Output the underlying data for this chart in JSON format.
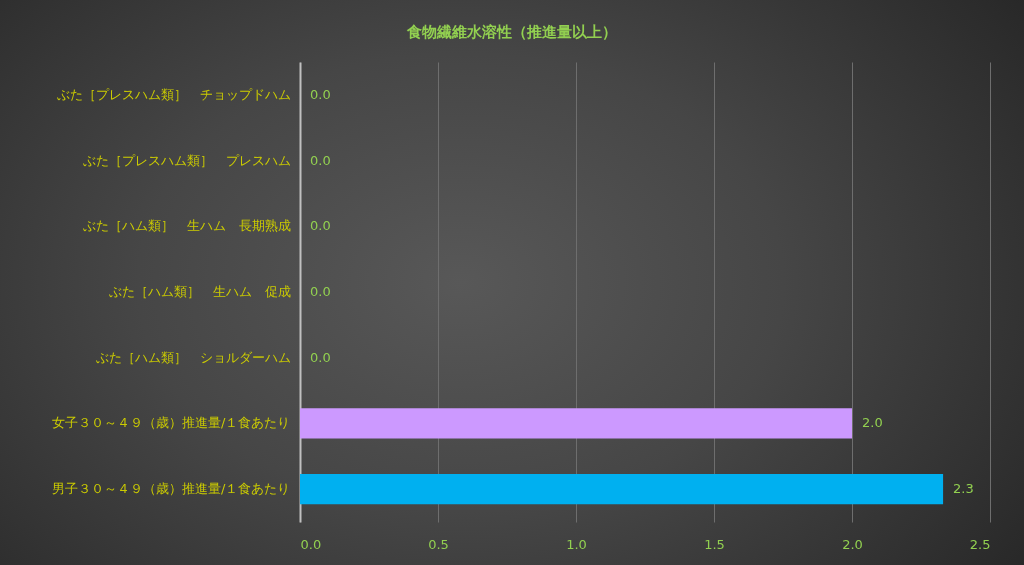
{
  "chart_data": {
    "type": "bar",
    "title": "食物繊維水溶性（推進量以上）",
    "orientation": "horizontal",
    "categories": [
      "ぶた［プレスハム類］　チョップドハム",
      "ぶた［プレスハム類］　プレスハム",
      "ぶた［ハム類］　生ハム　長期熟成",
      "ぶた［ハム類］　生ハム　促成",
      "ぶた［ハム類］　ショルダーハム",
      "女子３０～４９（歳）推進量/１食あたり",
      "男子３０～４９（歳）推進量/１食あたり"
    ],
    "values": [
      0,
      0,
      0,
      0,
      0,
      2.0,
      2.33
    ],
    "colors": [
      "#a5a5a5",
      "#a5a5a5",
      "#a5a5a5",
      "#a5a5a5",
      "#a5a5a5",
      "#cc99ff",
      "#00b0f0"
    ],
    "value_labels": [
      "0.0",
      "0.0",
      "0.0",
      "0.0",
      "0.0",
      "2.0",
      "2.3"
    ],
    "xlim": [
      0,
      2.5
    ],
    "xticks": [
      {
        "value": 0,
        "label": "0.0"
      },
      0.5,
      {
        "value": 1,
        "label": "1.0"
      },
      1.5,
      {
        "value": 2,
        "label": "2.0"
      },
      2.5
    ],
    "grid": "x"
  }
}
